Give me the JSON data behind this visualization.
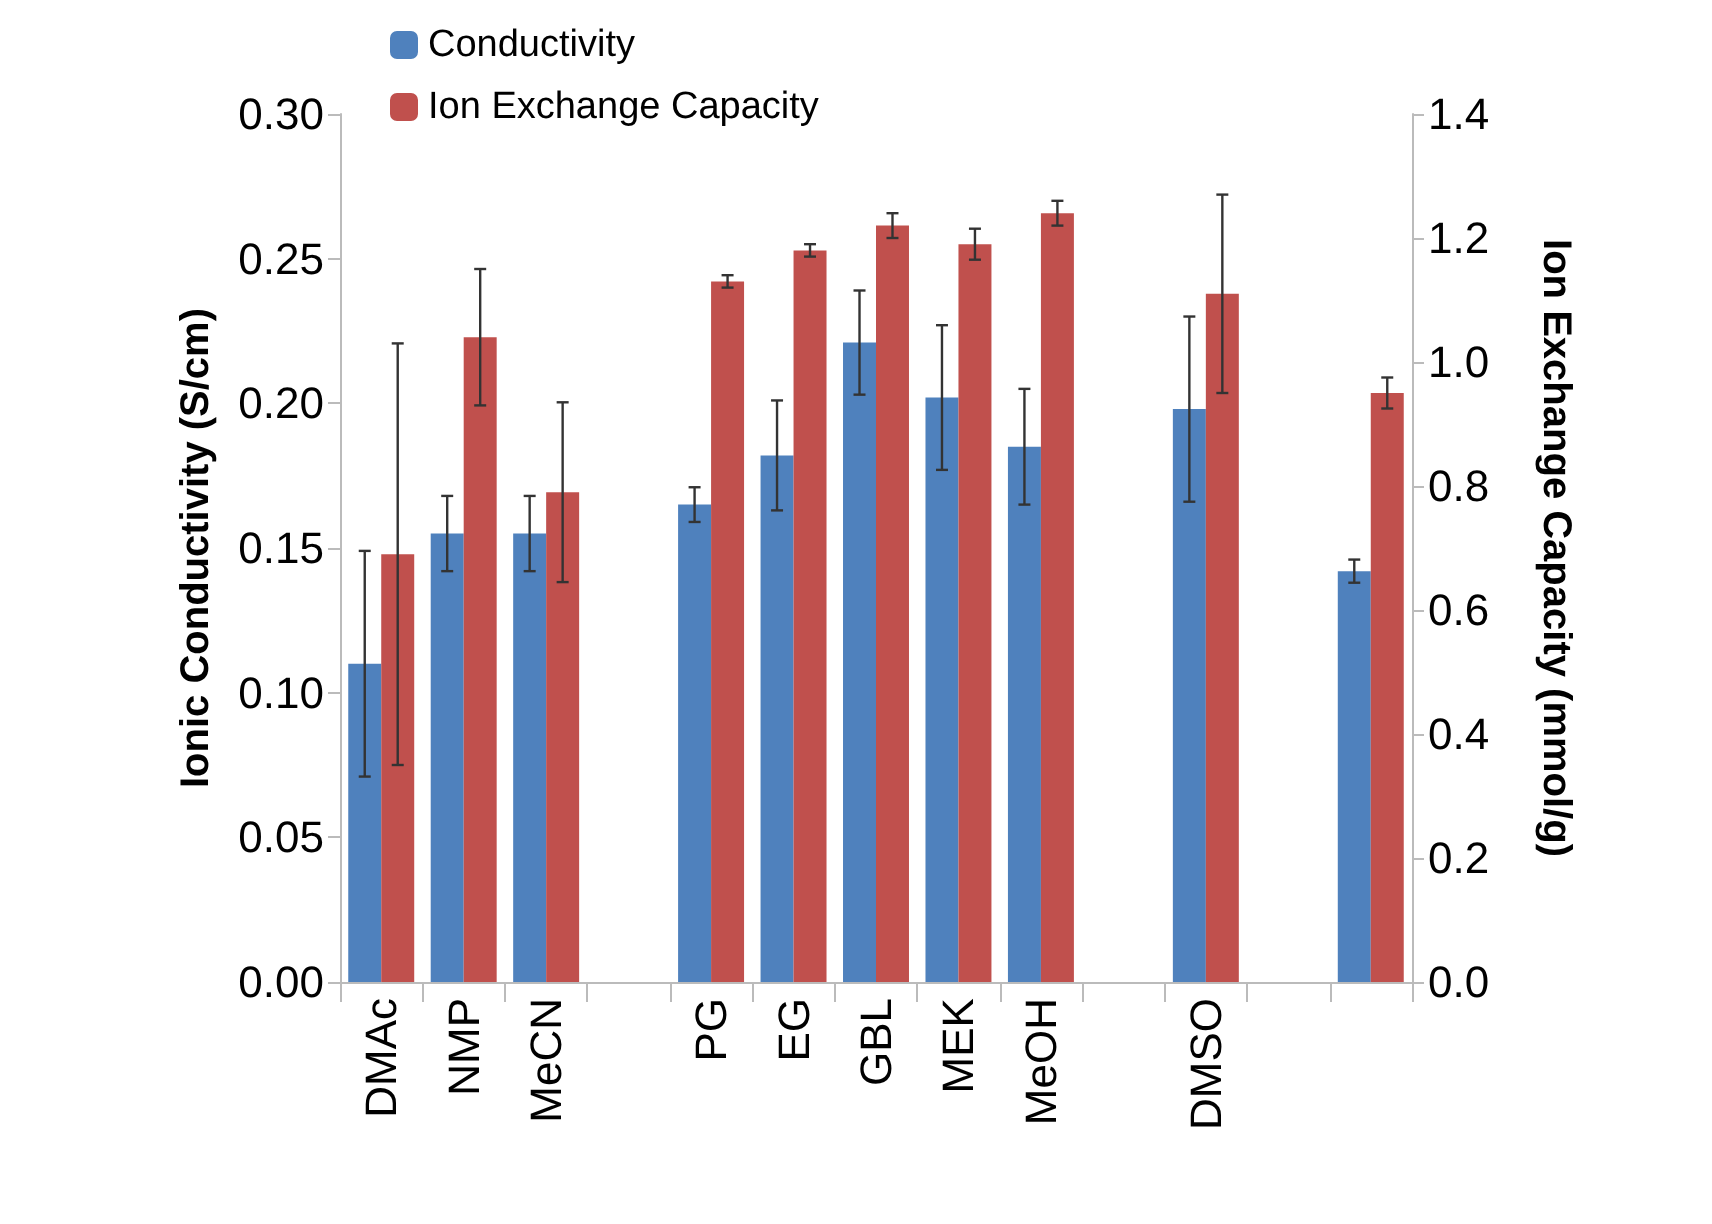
{
  "chart_data": {
    "type": "bar",
    "ylabel": "Ionic Conductivity (S/cm)",
    "y2label": "Ion Exchange Capacity (mmol/g)",
    "categories": [
      "DMAc",
      "NMP",
      "MeCN",
      null,
      "PG",
      "EG",
      "GBL",
      "MEK",
      "MeOH",
      null,
      "DMSO",
      null,
      null
    ],
    "series": [
      {
        "name": "Conductivity",
        "color": "#4f81bd",
        "values": [
          0.11,
          0.155,
          0.155,
          null,
          0.165,
          0.182,
          0.221,
          0.202,
          0.185,
          null,
          0.198,
          null,
          0.142
        ],
        "errors": [
          0.039,
          0.013,
          0.013,
          null,
          0.006,
          0.019,
          0.018,
          0.025,
          0.02,
          null,
          0.032,
          null,
          0.004
        ]
      },
      {
        "name": "Ion Exchange Capacity",
        "color": "#c0504d",
        "axis": "y2",
        "values": [
          0.69,
          1.04,
          0.79,
          null,
          1.13,
          1.18,
          1.22,
          1.19,
          1.24,
          null,
          1.11,
          null,
          0.95
        ],
        "errors": [
          0.34,
          0.11,
          0.145,
          null,
          0.01,
          0.01,
          0.02,
          0.025,
          0.02,
          null,
          0.16,
          null,
          0.025
        ]
      }
    ],
    "ylim": [
      0,
      0.3
    ],
    "yticks": [
      {
        "value": 0,
        "label": "0.00"
      },
      {
        "value": 0.05,
        "label": "0.05"
      },
      {
        "value": 0.1,
        "label": "0.10"
      },
      {
        "value": 0.15,
        "label": "0.15"
      },
      {
        "value": 0.2,
        "label": "0.20"
      },
      {
        "value": 0.25,
        "label": "0.25"
      },
      {
        "value": 0.3,
        "label": "0.30"
      }
    ],
    "y2lim": [
      0,
      1.4
    ],
    "y2ticks": [
      {
        "value": 0,
        "label": "0.0"
      },
      {
        "value": 0.2,
        "label": "0.2"
      },
      {
        "value": 0.4,
        "label": "0.4"
      },
      {
        "value": 0.6,
        "label": "0.6"
      },
      {
        "value": 0.8,
        "label": "0.8"
      },
      {
        "value": 1,
        "label": "1.0"
      },
      {
        "value": 1.2,
        "label": "1.2"
      },
      {
        "value": 1.4,
        "label": "1.4"
      }
    ],
    "grid": false,
    "legend": "top left"
  }
}
